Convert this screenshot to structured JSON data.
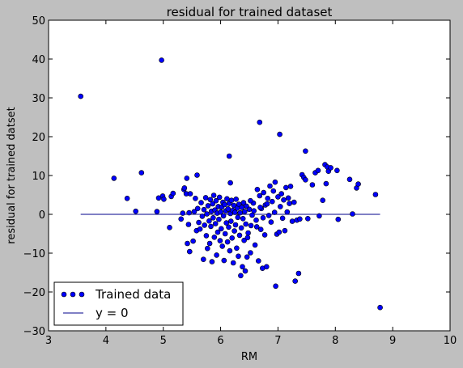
{
  "chart_data": {
    "type": "scatter",
    "title": "residual for trained dataset",
    "xlabel": "RM",
    "ylabel": "residual for trained datset",
    "xlim": [
      3,
      10
    ],
    "ylim": [
      -30,
      50
    ],
    "xticks": [
      "3",
      "4",
      "5",
      "6",
      "7",
      "8",
      "9",
      "10"
    ],
    "yticks": [
      "−30",
      "−20",
      "−10",
      "0",
      "10",
      "20",
      "30",
      "40",
      "50"
    ],
    "legend_position": "lower-left",
    "grid": false,
    "series": [
      {
        "name": "Trained data",
        "type": "scatter",
        "color": "#0000ff",
        "points": [
          [
            3.56,
            30.4
          ],
          [
            4.97,
            39.7
          ],
          [
            6.68,
            23.7
          ],
          [
            7.03,
            20.6
          ],
          [
            6.15,
            15.0
          ],
          [
            7.48,
            16.3
          ],
          [
            6.17,
            8.1
          ],
          [
            4.14,
            9.3
          ],
          [
            4.62,
            10.7
          ],
          [
            4.37,
            4.1
          ],
          [
            4.52,
            0.8
          ],
          [
            4.89,
            0.7
          ],
          [
            4.92,
            4.2
          ],
          [
            4.99,
            4.7
          ],
          [
            5.01,
            3.9
          ],
          [
            5.11,
            -3.4
          ],
          [
            5.14,
            4.6
          ],
          [
            5.17,
            5.4
          ],
          [
            5.31,
            -1.2
          ],
          [
            5.34,
            0.3
          ],
          [
            5.36,
            6.4
          ],
          [
            5.37,
            6.8
          ],
          [
            5.4,
            5.3
          ],
          [
            5.41,
            9.3
          ],
          [
            5.44,
            -2.6
          ],
          [
            5.45,
            0.4
          ],
          [
            5.42,
            -7.5
          ],
          [
            5.46,
            -9.6
          ],
          [
            5.47,
            5.3
          ],
          [
            5.52,
            -6.9
          ],
          [
            5.54,
            0.7
          ],
          [
            5.56,
            4.1
          ],
          [
            5.58,
            -4.2
          ],
          [
            5.59,
            10.1
          ],
          [
            5.6,
            1.5
          ],
          [
            5.62,
            -2.1
          ],
          [
            5.64,
            -3.8
          ],
          [
            5.66,
            3.0
          ],
          [
            5.68,
            -0.5
          ],
          [
            5.7,
            -11.6
          ],
          [
            5.71,
            1.2
          ],
          [
            5.72,
            -2.8
          ],
          [
            5.74,
            4.3
          ],
          [
            5.75,
            -5.5
          ],
          [
            5.76,
            0.1
          ],
          [
            5.77,
            -8.8
          ],
          [
            5.78,
            2.2
          ],
          [
            5.8,
            -1.7
          ],
          [
            5.81,
            -7.5
          ],
          [
            5.82,
            3.8
          ],
          [
            5.83,
            -3.1
          ],
          [
            5.84,
            0.8
          ],
          [
            5.85,
            -12.2
          ],
          [
            5.86,
            2.7
          ],
          [
            5.87,
            -0.9
          ],
          [
            5.88,
            4.9
          ],
          [
            5.89,
            -5.9
          ],
          [
            5.9,
            1.1
          ],
          [
            5.91,
            -2.4
          ],
          [
            5.92,
            3.5
          ],
          [
            5.93,
            -10.5
          ],
          [
            5.94,
            0.3
          ],
          [
            5.95,
            -4.6
          ],
          [
            5.96,
            2.0
          ],
          [
            5.97,
            -1.3
          ],
          [
            5.98,
            4.4
          ],
          [
            5.99,
            -6.8
          ],
          [
            6.0,
            0.6
          ],
          [
            6.01,
            -3.7
          ],
          [
            6.02,
            1.9
          ],
          [
            6.03,
            -8.2
          ],
          [
            6.04,
            3.1
          ],
          [
            6.05,
            -0.4
          ],
          [
            6.06,
            -11.9
          ],
          [
            6.07,
            2.5
          ],
          [
            6.08,
            -5.0
          ],
          [
            6.09,
            0.9
          ],
          [
            6.1,
            -2.2
          ],
          [
            6.11,
            4.0
          ],
          [
            6.12,
            -7.1
          ],
          [
            6.13,
            1.4
          ],
          [
            6.14,
            -3.3
          ],
          [
            6.15,
            2.8
          ],
          [
            6.16,
            -9.4
          ],
          [
            6.17,
            0.2
          ],
          [
            6.18,
            -1.8
          ],
          [
            6.19,
            3.6
          ],
          [
            6.2,
            -6.1
          ],
          [
            6.21,
            1.0
          ],
          [
            6.22,
            -12.5
          ],
          [
            6.23,
            2.3
          ],
          [
            6.24,
            -4.3
          ],
          [
            6.25,
            0.5
          ],
          [
            6.26,
            -2.7
          ],
          [
            6.27,
            3.9
          ],
          [
            6.28,
            -8.7
          ],
          [
            6.29,
            1.6
          ],
          [
            6.3,
            -0.8
          ],
          [
            6.31,
            -10.8
          ],
          [
            6.32,
            2.6
          ],
          [
            6.33,
            -5.4
          ],
          [
            6.34,
            0.4
          ],
          [
            6.35,
            -15.8
          ],
          [
            6.36,
            -3.5
          ],
          [
            6.37,
            1.8
          ],
          [
            6.38,
            -13.5
          ],
          [
            6.39,
            -1.1
          ],
          [
            6.4,
            3.0
          ],
          [
            6.41,
            -6.7
          ],
          [
            6.42,
            0.7
          ],
          [
            6.43,
            -14.6
          ],
          [
            6.44,
            -2.5
          ],
          [
            6.45,
            2.1
          ],
          [
            6.46,
            -11.0
          ],
          [
            6.48,
            -4.8
          ],
          [
            6.5,
            1.3
          ],
          [
            6.52,
            -9.9
          ],
          [
            6.55,
            -0.2
          ],
          [
            6.57,
            2.9
          ],
          [
            6.6,
            -7.9
          ],
          [
            6.62,
            -1.5
          ],
          [
            6.64,
            6.4
          ],
          [
            6.66,
            -12.0
          ],
          [
            6.68,
            4.8
          ],
          [
            6.7,
            -3.9
          ],
          [
            6.71,
            1.5
          ],
          [
            6.73,
            -13.9
          ],
          [
            6.75,
            5.6
          ],
          [
            6.77,
            -5.3
          ],
          [
            6.78,
            2.4
          ],
          [
            6.8,
            -13.5
          ],
          [
            6.82,
            4.1
          ],
          [
            6.84,
            -0.3
          ],
          [
            6.86,
            7.3
          ],
          [
            6.88,
            -2.0
          ],
          [
            6.9,
            3.3
          ],
          [
            6.92,
            6.0
          ],
          [
            6.94,
            0.5
          ],
          [
            6.95,
            8.3
          ],
          [
            6.96,
            -18.5
          ],
          [
            6.98,
            -5.1
          ],
          [
            7.0,
            4.5
          ],
          [
            7.02,
            -4.6
          ],
          [
            7.04,
            2.0
          ],
          [
            7.06,
            5.3
          ],
          [
            7.08,
            -1.0
          ],
          [
            7.1,
            3.7
          ],
          [
            7.12,
            -4.2
          ],
          [
            7.14,
            6.9
          ],
          [
            7.16,
            0.6
          ],
          [
            7.18,
            4.2
          ],
          [
            7.2,
            2.8
          ],
          [
            7.22,
            7.2
          ],
          [
            7.25,
            -1.8
          ],
          [
            7.28,
            3.1
          ],
          [
            7.3,
            -17.2
          ],
          [
            7.33,
            -1.5
          ],
          [
            7.36,
            -15.2
          ],
          [
            7.38,
            -1.2
          ],
          [
            7.42,
            10.2
          ],
          [
            7.45,
            9.5
          ],
          [
            7.48,
            8.9
          ],
          [
            7.52,
            -1.1
          ],
          [
            7.6,
            7.6
          ],
          [
            7.65,
            10.7
          ],
          [
            7.7,
            11.3
          ],
          [
            7.72,
            -0.4
          ],
          [
            7.78,
            3.6
          ],
          [
            7.82,
            12.8
          ],
          [
            7.84,
            7.9
          ],
          [
            7.86,
            12.2
          ],
          [
            7.88,
            11.1
          ],
          [
            7.92,
            12.0
          ],
          [
            8.03,
            11.3
          ],
          [
            8.05,
            -1.3
          ],
          [
            8.25,
            9.0
          ],
          [
            8.3,
            0.1
          ],
          [
            8.37,
            6.8
          ],
          [
            8.4,
            7.8
          ],
          [
            8.7,
            5.1
          ],
          [
            8.78,
            -24.0
          ],
          [
            6.52,
            3.5
          ],
          [
            6.58,
            0.9
          ],
          [
            6.63,
            -3.2
          ],
          [
            6.69,
            1.8
          ],
          [
            6.74,
            -0.9
          ],
          [
            6.81,
            2.7
          ],
          [
            6.47,
            -6.0
          ],
          [
            6.53,
            -2.9
          ]
        ]
      },
      {
        "name": "y = 0",
        "type": "line",
        "color": "#00008b",
        "x": [
          3.56,
          8.78
        ],
        "y": [
          0,
          0
        ]
      }
    ]
  }
}
